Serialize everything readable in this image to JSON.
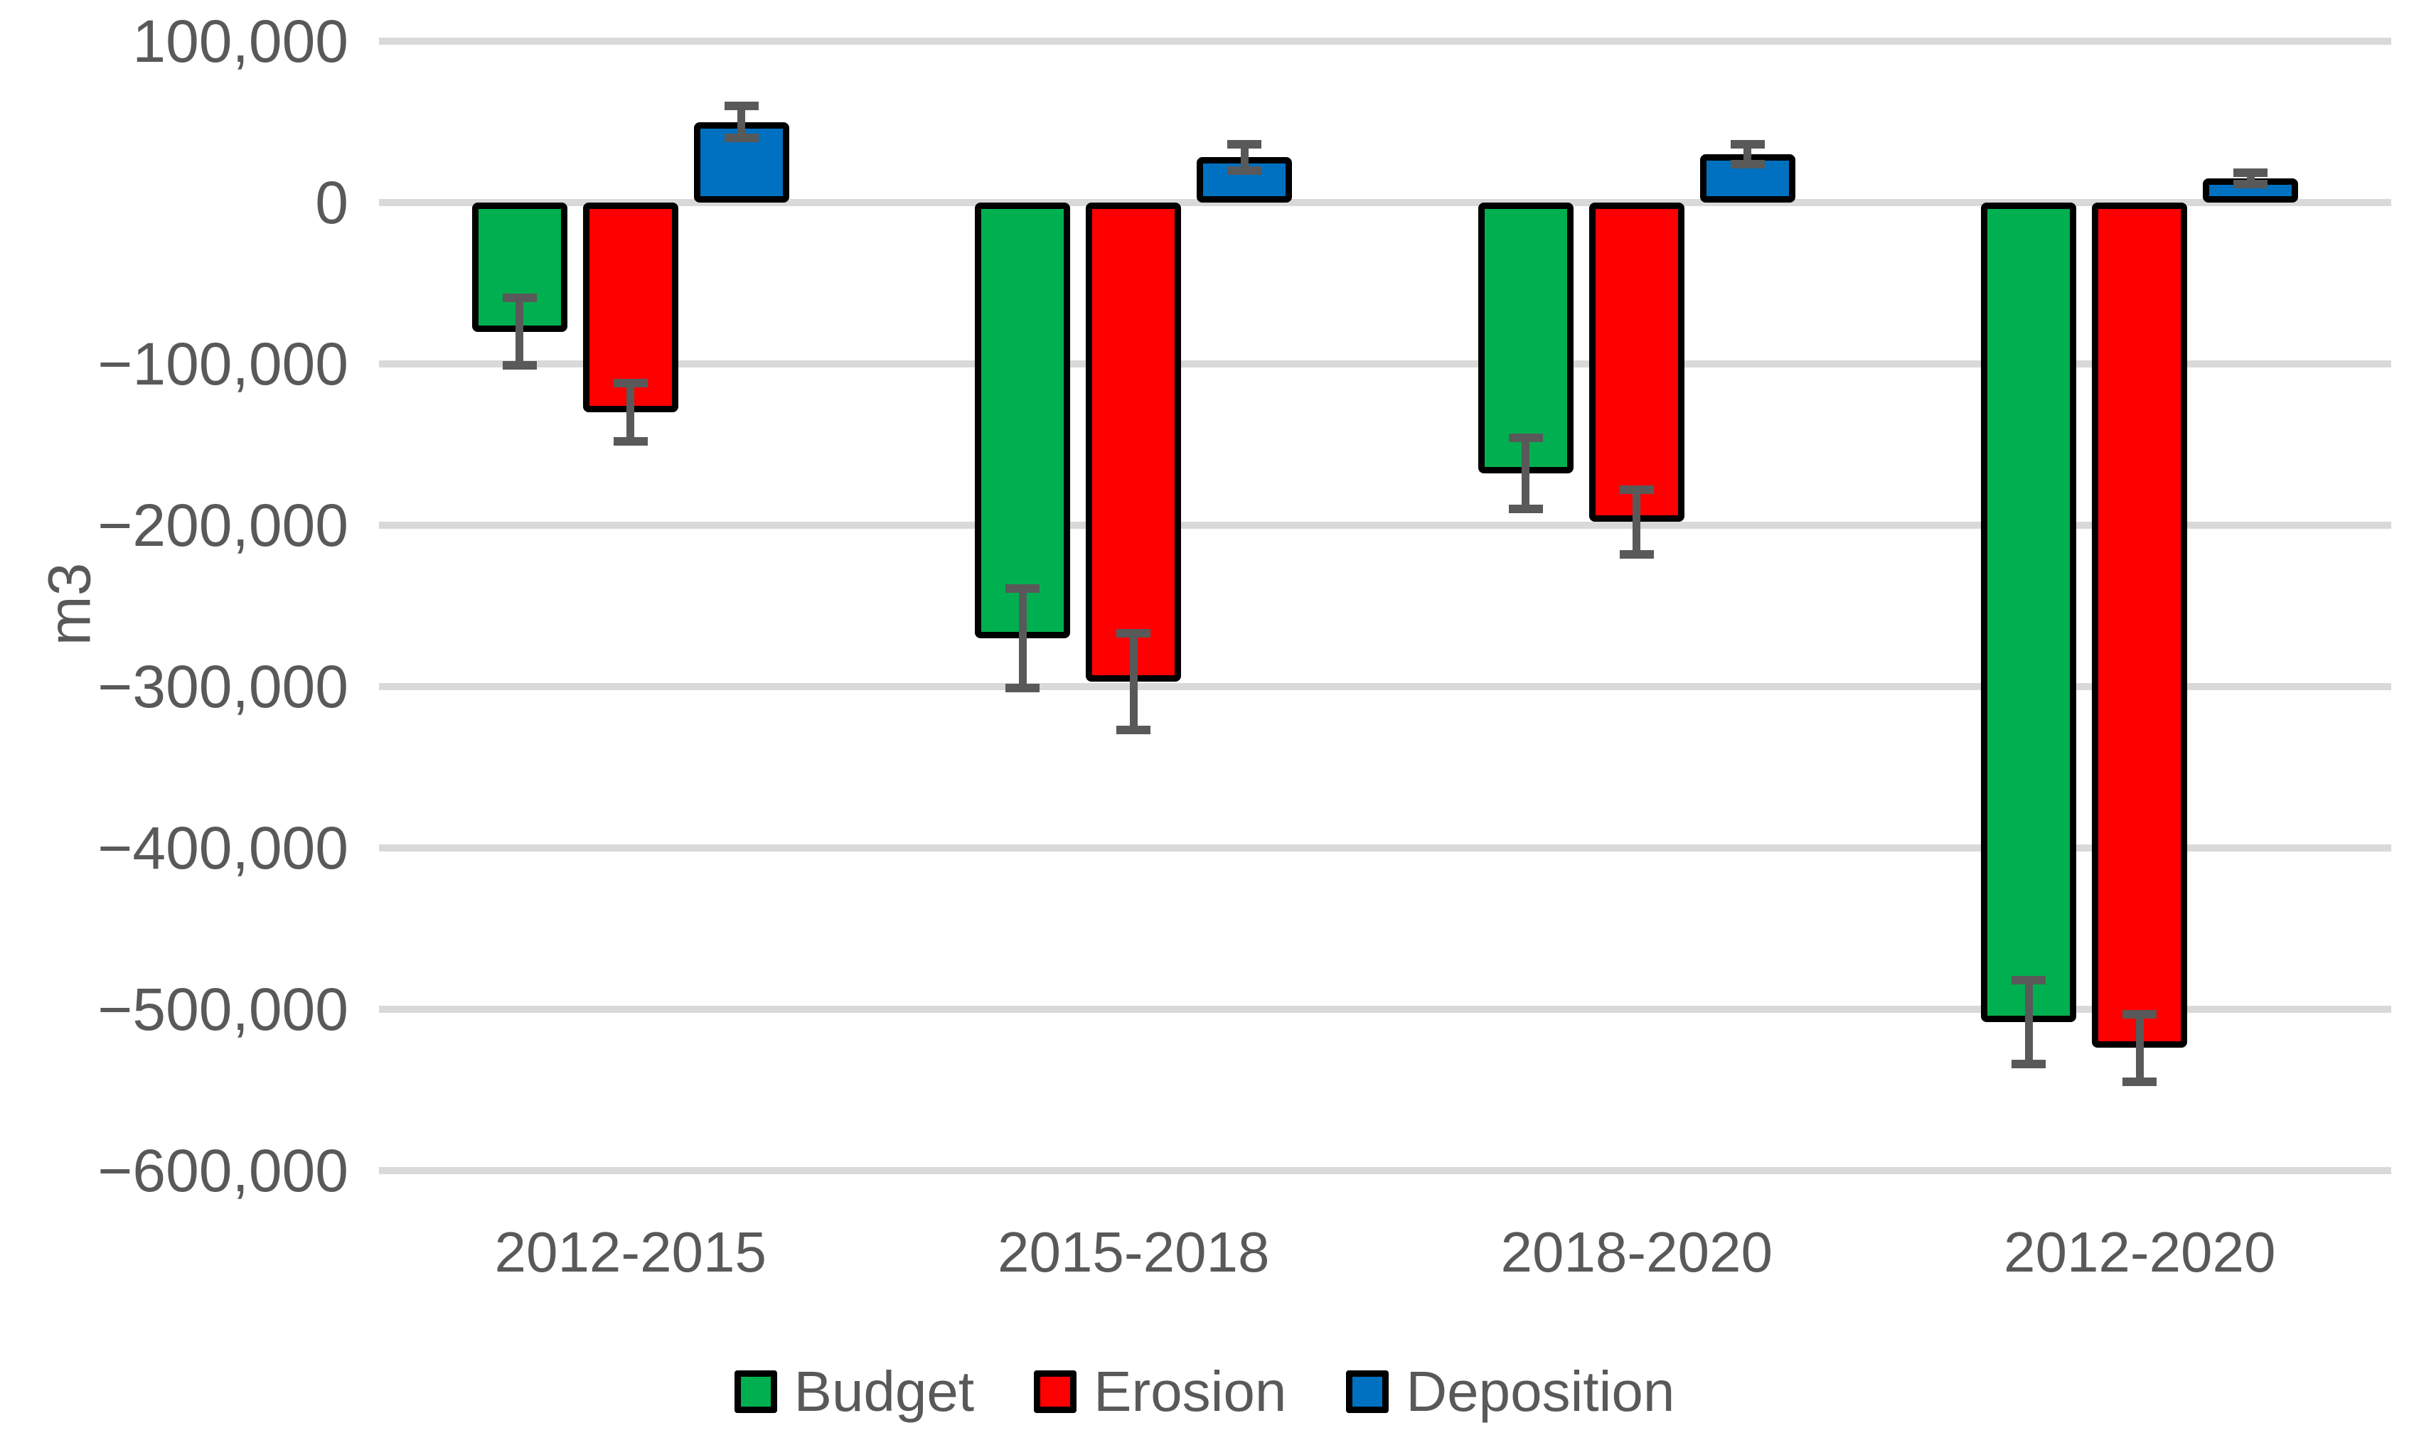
{
  "chart_data": {
    "type": "bar",
    "title": "",
    "xlabel": "",
    "ylabel": "m3",
    "categories": [
      "2012-2015",
      "2015-2018",
      "2018-2020",
      "2012-2020"
    ],
    "series": [
      {
        "name": "Budget",
        "color": "#00B050",
        "values": [
          -80000,
          -270000,
          -168000,
          -508000
        ],
        "errors": [
          21000,
          31000,
          22000,
          26000
        ]
      },
      {
        "name": "Erosion",
        "color": "#FF0000",
        "values": [
          -130000,
          -297000,
          -198000,
          -524000
        ],
        "errors": [
          18000,
          30000,
          20000,
          21000
        ]
      },
      {
        "name": "Deposition",
        "color": "#0070C0",
        "values": [
          50000,
          28000,
          30000,
          15000
        ],
        "errors": [
          10000,
          8000,
          6000,
          3500
        ]
      }
    ],
    "ylim": [
      -600000,
      100000
    ],
    "yticks": [
      {
        "value": 100000,
        "label": "100,000"
      },
      {
        "value": 0,
        "label": "0"
      },
      {
        "value": -100000,
        "label": "−100,000"
      },
      {
        "value": -200000,
        "label": "−200,000"
      },
      {
        "value": -300000,
        "label": "−300,000"
      },
      {
        "value": -400000,
        "label": "−400,000"
      },
      {
        "value": -500000,
        "label": "−500,000"
      },
      {
        "value": -600000,
        "label": "−600,000"
      }
    ],
    "grid": true,
    "legend_position": "bottom",
    "colors": {
      "bar_outline": "#000000",
      "error_bar": "#595959",
      "gridline": "#D9D9D9",
      "text": "#595959",
      "background": "#FFFFFF"
    }
  }
}
